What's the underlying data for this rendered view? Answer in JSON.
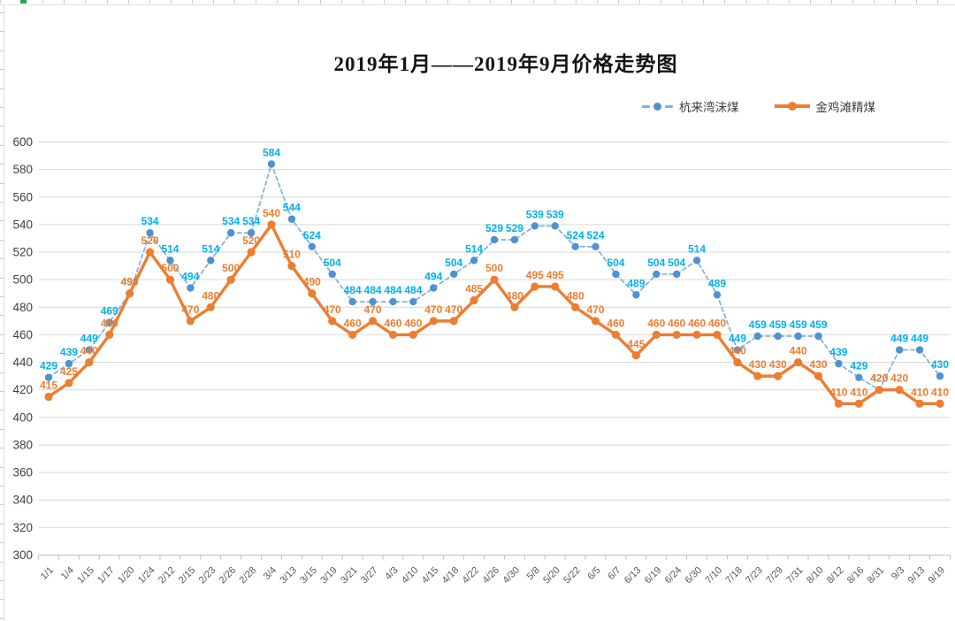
{
  "title": "2019年1月——2019年9月价格走势图",
  "chart_data": {
    "type": "line",
    "title": "2019年1月——2019年9月价格走势图",
    "categories": [
      "1/1",
      "1/4",
      "1/15",
      "1/17",
      "1/20",
      "1/24",
      "2/12",
      "2/15",
      "2/23",
      "2/26",
      "2/28",
      "3/4",
      "3/13",
      "3/15",
      "3/19",
      "3/21",
      "3/27",
      "4/3",
      "4/10",
      "4/15",
      "4/18",
      "4/22",
      "4/26",
      "4/30",
      "5/8",
      "5/20",
      "5/22",
      "6/5",
      "6/7",
      "6/13",
      "6/19",
      "6/24",
      "6/30",
      "7/10",
      "7/18",
      "7/23",
      "7/29",
      "7/31",
      "8/10",
      "8/12",
      "8/16",
      "8/31",
      "9/3",
      "9/13",
      "9/19"
    ],
    "series": [
      {
        "name": "杭来湾沫煤",
        "style": "dashed",
        "color": "#5B9BD5",
        "line_color": "#7FB0DF",
        "marker_color": "#4E92D2",
        "label_color": "#00B0F0",
        "values": [
          429,
          439,
          449,
          469,
          490,
          534,
          514,
          494,
          514,
          534,
          534,
          584,
          544,
          524,
          504,
          484,
          484,
          484,
          484,
          494,
          504,
          514,
          529,
          529,
          539,
          539,
          524,
          524,
          504,
          489,
          504,
          504,
          514,
          489,
          449,
          459,
          459,
          459,
          459,
          439,
          429,
          420,
          449,
          449,
          430
        ]
      },
      {
        "name": "金鸡滩精煤",
        "style": "solid",
        "color": "#ED7D31",
        "line_color": "#ED7D31",
        "marker_color": "#ED7D31",
        "label_color": "#ED7D31",
        "values": [
          415,
          425,
          440,
          460,
          490,
          520,
          500,
          470,
          480,
          500,
          520,
          540,
          510,
          490,
          470,
          460,
          470,
          460,
          460,
          470,
          470,
          485,
          500,
          480,
          495,
          495,
          480,
          470,
          460,
          445,
          460,
          460,
          460,
          460,
          440,
          430,
          430,
          440,
          430,
          410,
          410,
          420,
          420,
          410,
          410
        ]
      }
    ],
    "ylim": [
      300,
      600
    ],
    "yticks": [
      300,
      320,
      340,
      360,
      380,
      400,
      420,
      440,
      460,
      480,
      500,
      520,
      540,
      560,
      580,
      600
    ],
    "grid": true,
    "data_labels": true,
    "legend_position": "top-right",
    "axis_colors": {
      "grid": "#D9D9D9",
      "axis_line": "#BFBFBF",
      "y_label": "#404040",
      "x_label": "#595959"
    }
  }
}
